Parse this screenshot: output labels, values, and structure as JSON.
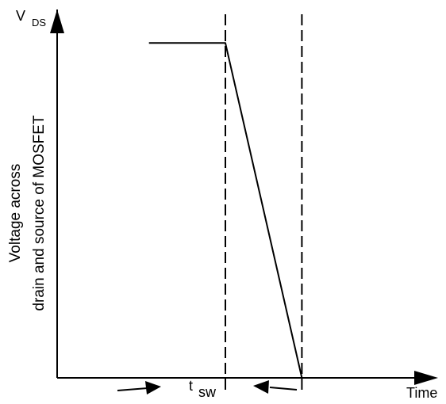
{
  "chart_data": {
    "type": "line",
    "title": "",
    "xlabel": "Time",
    "ylabel": {
      "symbol_main": "V",
      "symbol_sub": "DS",
      "line1": "Voltage across",
      "line2": "drain and source of MOSFET"
    },
    "annotation": {
      "main": "t",
      "sub": "sw"
    },
    "series": [
      {
        "points": [
          [
            0,
            1
          ],
          [
            1,
            1
          ],
          [
            2,
            0
          ],
          [
            3.5,
            0
          ]
        ]
      }
    ],
    "markers": [
      1,
      2
    ],
    "xlim": [
      -1.2,
      3.5
    ],
    "ylim": [
      0,
      1.1
    ],
    "ticks_shown": false,
    "grid": false,
    "colors": {
      "line": "#000000",
      "axis": "#000000",
      "marker": "#000000"
    }
  }
}
